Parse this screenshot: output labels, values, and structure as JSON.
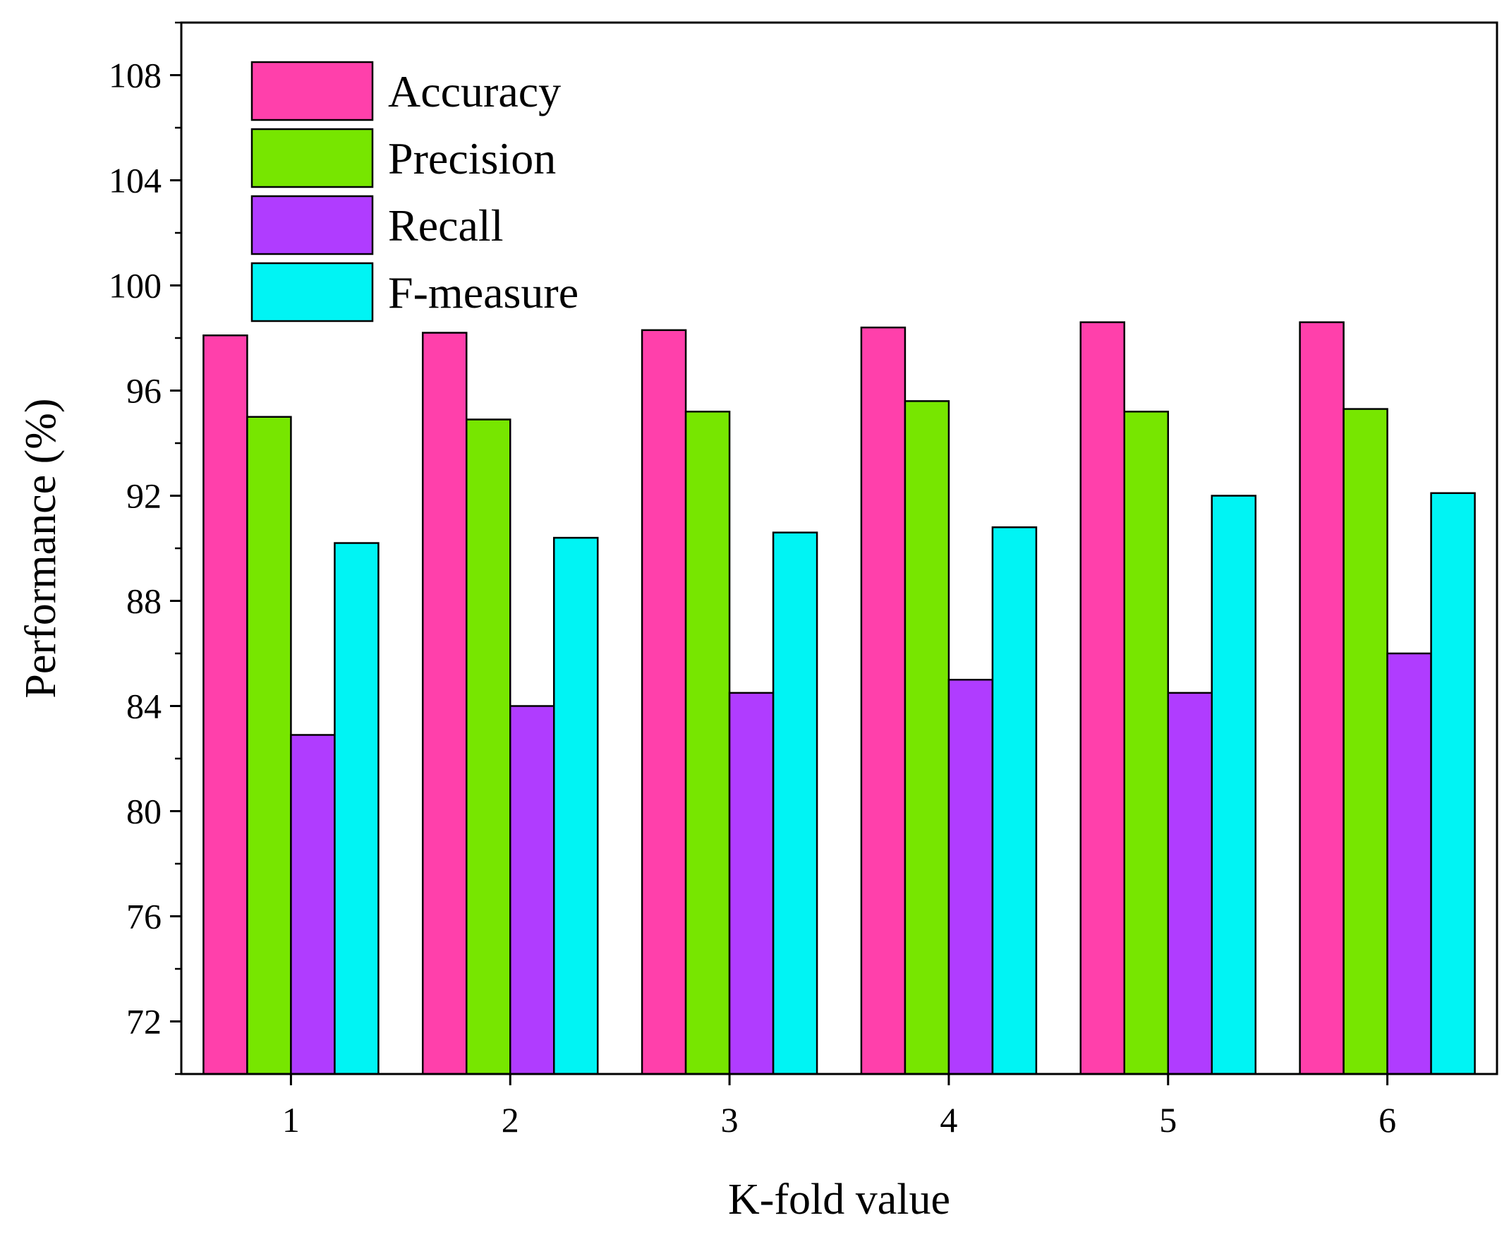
{
  "chart_data": {
    "type": "bar",
    "title": "",
    "xlabel": "K-fold value",
    "ylabel": "Performance (%)",
    "categories": [
      "1",
      "2",
      "3",
      "4",
      "5",
      "6"
    ],
    "ylim": [
      70,
      110
    ],
    "yticks": [
      "72",
      "76",
      "80",
      "84",
      "88",
      "92",
      "96",
      "100",
      "104",
      "108"
    ],
    "grid": false,
    "legend_position": "top-left",
    "series": [
      {
        "name": "Accuracy",
        "color": "#ff40ab",
        "values": [
          98.1,
          98.2,
          98.3,
          98.4,
          98.6,
          98.6
        ]
      },
      {
        "name": "Precision",
        "color": "#77e600",
        "values": [
          95.0,
          94.9,
          95.2,
          95.6,
          95.2,
          95.3
        ]
      },
      {
        "name": "Recall",
        "color": "#b03cff",
        "values": [
          82.9,
          84.0,
          84.5,
          85.0,
          84.5,
          86.0
        ]
      },
      {
        "name": "F-measure",
        "color": "#00f4f4",
        "values": [
          90.2,
          90.4,
          90.6,
          90.8,
          92.0,
          92.1
        ]
      }
    ]
  }
}
